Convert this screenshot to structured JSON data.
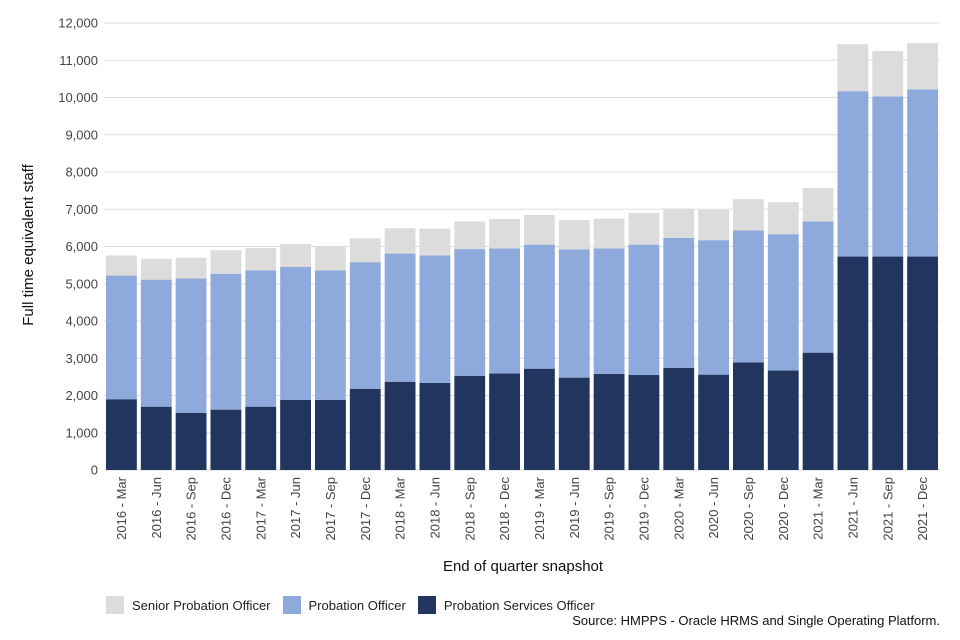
{
  "chart_data": {
    "type": "bar",
    "stacked": true,
    "xlabel": "End of quarter snapshot",
    "ylabel": "Full time equivalent staff",
    "ylim": [
      0,
      12000
    ],
    "yticks": [
      0,
      1000,
      2000,
      3000,
      4000,
      5000,
      6000,
      7000,
      8000,
      9000,
      10000,
      11000,
      12000
    ],
    "ytick_labels": [
      "0",
      "1,000",
      "2,000",
      "3,000",
      "4,000",
      "5,000",
      "6,000",
      "7,000",
      "8,000",
      "9,000",
      "10,000",
      "11,000",
      "12,000"
    ],
    "grid": true,
    "legend_position": "bottom-left",
    "categories": [
      "2016 - Mar",
      "2016 - Jun",
      "2016 - Sep",
      "2016 - Dec",
      "2017 - Mar",
      "2017 - Jun",
      "2017 - Sep",
      "2017 - Dec",
      "2018 - Mar",
      "2018 - Jun",
      "2018 - Sep",
      "2018 - Dec",
      "2019 - Mar",
      "2019 - Jun",
      "2019 - Sep",
      "2019 - Dec",
      "2020 - Mar",
      "2020 - Jun",
      "2020 - Sep",
      "2020 - Dec",
      "2021 - Mar",
      "2021 - Jun",
      "2021 - Sep",
      "2021 - Dec"
    ],
    "series": [
      {
        "name": "Probation Services Officer",
        "color": "#21355f",
        "values": [
          1900,
          1700,
          1530,
          1620,
          1700,
          1880,
          1880,
          2180,
          2370,
          2340,
          2530,
          2590,
          2720,
          2480,
          2580,
          2550,
          2740,
          2560,
          2890,
          2670,
          3150,
          5730,
          5730,
          5730
        ]
      },
      {
        "name": "Probation Officer",
        "color": "#8ea9db",
        "values": [
          3320,
          3410,
          3610,
          3650,
          3660,
          3570,
          3480,
          3400,
          3440,
          3420,
          3400,
          3360,
          3330,
          3440,
          3370,
          3500,
          3490,
          3610,
          3540,
          3660,
          3520,
          4440,
          4300,
          4490
        ]
      },
      {
        "name": "Senior Probation Officer",
        "color": "#dcdcdc",
        "values": [
          540,
          560,
          560,
          630,
          600,
          620,
          650,
          640,
          680,
          720,
          740,
          790,
          800,
          790,
          800,
          850,
          790,
          810,
          840,
          860,
          900,
          1260,
          1220,
          1240
        ]
      }
    ],
    "legend_order": [
      "Senior Probation Officer",
      "Probation Officer",
      "Probation Services Officer"
    ],
    "source": "Source: HMPPS - Oracle HRMS and Single Operating Platform."
  }
}
